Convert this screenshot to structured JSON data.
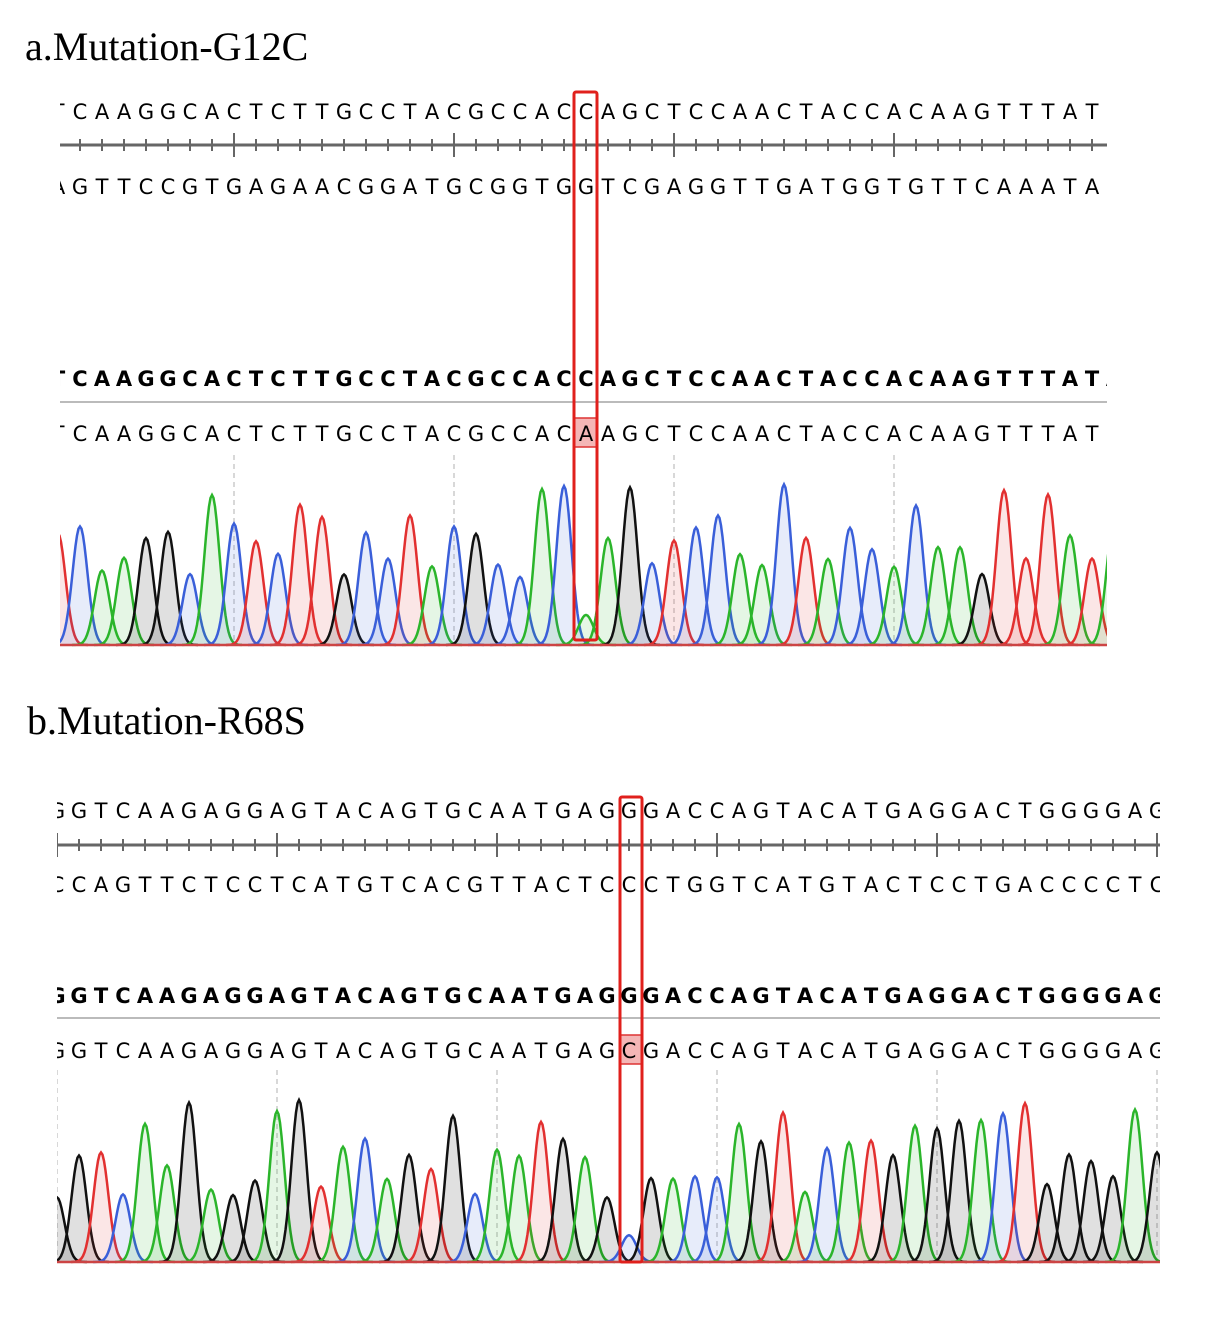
{
  "panels": [
    {
      "title": "a.Mutation-G12C",
      "forward": "TCAAGGCACTCTTGCCTACGCCACCAGCTCCAACTACCACAAGTTTATA",
      "complement": "AGTTCCGTGAGAACGGATGCGGTGGTCGAGGTTGATGGTGTTCAAATAT",
      "reference": "TCAAGGCACTCTTGCCTACGCCACCAGCTCCAACTACCACAAGTTTATA",
      "sample": "TCAAGGCACTCTTGCCTACGCCACAAGCTCCAACTACCACAAGTTTATA"
    },
    {
      "title": "b.Mutation-R68S",
      "forward": "GGTCAAGAGGAGTACAGTGCAATGAGGGACCAGTACATGAGGACTGGGGAG",
      "complement": "CCAGTTCTCCTCATGTCACGTTACTCCCTGGTCATGTACTCCTGACCCCTC",
      "reference": "GGTCAAGAGGAGTACAGTGCAATGAGGGACCAGTACATGAGGACTGGGGAG",
      "sample": "GGTCAAGAGGAGTACAGTGCAATGAGCGACCAGTACATGAGGACTGGGGAG"
    }
  ]
}
